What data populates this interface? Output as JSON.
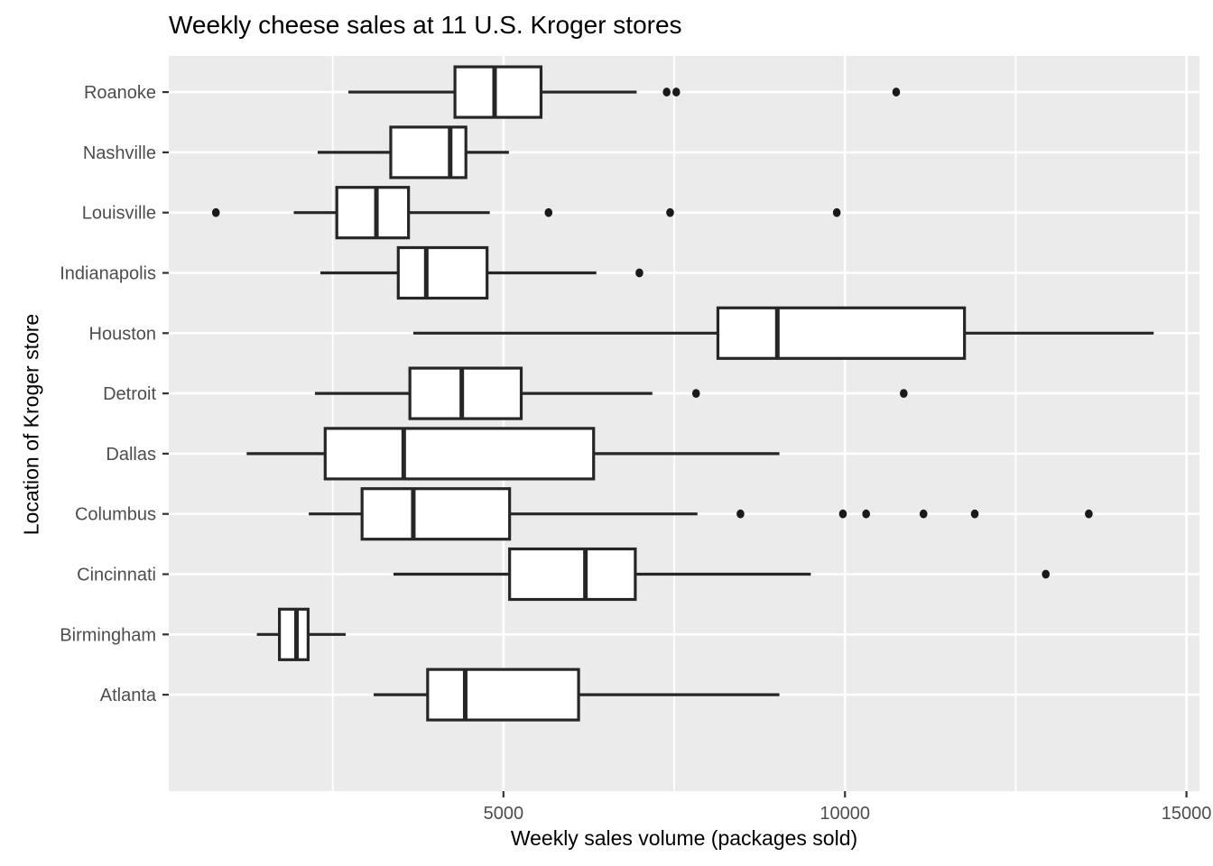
{
  "chart_data": {
    "type": "boxplot",
    "orientation": "horizontal",
    "title": "Weekly cheese sales at 11 U.S. Kroger stores",
    "xlabel": "Weekly sales volume (packages sold)",
    "ylabel": "Location of Kroger store",
    "xlim": [
      100,
      15190
    ],
    "x_major_ticks": [
      5000,
      10000,
      15000
    ],
    "x_major_tick_labels": [
      "5000",
      "10000",
      "15000"
    ],
    "x_minor_gridlines": [
      2500,
      7500,
      12500
    ],
    "grid": "on",
    "legend": "none",
    "categories_top_to_bottom": [
      "Roanoke",
      "Nashville",
      "Louisville",
      "Indianapolis",
      "Houston",
      "Detroit",
      "Dallas",
      "Columbus",
      "Cincinnati",
      "Birmingham",
      "Atlanta"
    ],
    "series": [
      {
        "store": "Roanoke",
        "whisker_low": 2730,
        "q1": 4290,
        "median": 4870,
        "q3": 5550,
        "whisker_high": 6950,
        "outliers": [
          7390,
          7530,
          10750
        ]
      },
      {
        "store": "Nashville",
        "whisker_low": 2280,
        "q1": 3350,
        "median": 4220,
        "q3": 4450,
        "whisker_high": 5080,
        "outliers": []
      },
      {
        "store": "Louisville",
        "whisker_low": 1930,
        "q1": 2560,
        "median": 3140,
        "q3": 3610,
        "whisker_high": 4800,
        "outliers": [
          790,
          5660,
          7440,
          9880
        ]
      },
      {
        "store": "Indianapolis",
        "whisker_low": 2320,
        "q1": 3460,
        "median": 3870,
        "q3": 4760,
        "whisker_high": 6360,
        "outliers": [
          6990
        ]
      },
      {
        "store": "Houston",
        "whisker_low": 3680,
        "q1": 8140,
        "median": 9010,
        "q3": 11750,
        "whisker_high": 14520,
        "outliers": []
      },
      {
        "store": "Detroit",
        "whisker_low": 2240,
        "q1": 3630,
        "median": 4390,
        "q3": 5260,
        "whisker_high": 7180,
        "outliers": [
          7820,
          10860
        ]
      },
      {
        "store": "Dallas",
        "whisker_low": 1240,
        "q1": 2390,
        "median": 3540,
        "q3": 6320,
        "whisker_high": 9040,
        "outliers": []
      },
      {
        "store": "Columbus",
        "whisker_low": 2150,
        "q1": 2930,
        "median": 3680,
        "q3": 5090,
        "whisker_high": 7840,
        "outliers": [
          8470,
          9970,
          10310,
          11150,
          11900,
          13570
        ]
      },
      {
        "store": "Cincinnati",
        "whisker_low": 3390,
        "q1": 5090,
        "median": 6200,
        "q3": 6930,
        "whisker_high": 9500,
        "outliers": [
          12940
        ]
      },
      {
        "store": "Birmingham",
        "whisker_low": 1390,
        "q1": 1720,
        "median": 1970,
        "q3": 2140,
        "whisker_high": 2690,
        "outliers": []
      },
      {
        "store": "Atlanta",
        "whisker_low": 3100,
        "q1": 3890,
        "median": 4440,
        "q3": 6100,
        "whisker_high": 9040,
        "outliers": []
      }
    ],
    "colors": {
      "panel_background": "#EBEBEB",
      "gridline": "#FFFFFF",
      "box_stroke": "#262626",
      "box_fill": "#FFFFFF",
      "outlier_fill": "#1A1A1A",
      "tick_mark": "#333333",
      "tick_label_text": "#4D4D4D",
      "title_text": "#000000"
    }
  }
}
